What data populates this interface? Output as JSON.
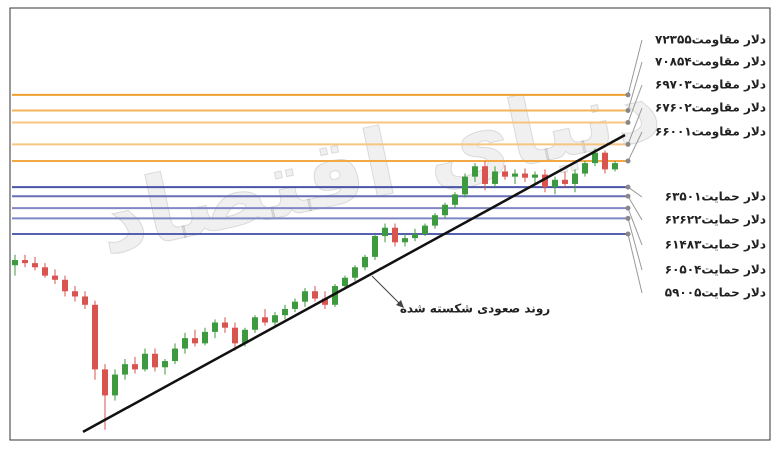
{
  "chart_data": {
    "type": "candlestick",
    "watermark": "دنیای اقتصاد",
    "ylim": [
      3970,
      8050
    ],
    "up_color": "#3e9a3e",
    "down_color": "#d9534f",
    "open": [
      5600,
      5650,
      5620,
      5580,
      5500,
      5460,
      5350,
      5300,
      5220,
      4600,
      4350,
      4550,
      4650,
      4600,
      4750,
      4620,
      4680,
      4800,
      4900,
      4850,
      4960,
      5050,
      5000,
      4850,
      4980,
      5100,
      5050,
      5120,
      5180,
      5250,
      5350,
      5280,
      5220,
      5400,
      5480,
      5580,
      5680,
      5880,
      5960,
      5820,
      5860,
      5900,
      5980,
      6080,
      6180,
      6280,
      6450,
      6550,
      6380,
      6500,
      6450,
      6480,
      6440,
      6470,
      6350,
      6420,
      6380,
      6480,
      6580,
      6680,
      6520
    ],
    "high": [
      5700,
      5700,
      5680,
      5620,
      5560,
      5500,
      5400,
      5350,
      5260,
      4650,
      4600,
      4700,
      4720,
      4800,
      4800,
      4700,
      4850,
      4950,
      4980,
      5000,
      5080,
      5100,
      5050,
      5000,
      5120,
      5180,
      5150,
      5220,
      5280,
      5380,
      5400,
      5350,
      5420,
      5500,
      5600,
      5700,
      5900,
      6000,
      6000,
      5900,
      5950,
      6000,
      6100,
      6200,
      6300,
      6480,
      6580,
      6600,
      6550,
      6560,
      6520,
      6530,
      6500,
      6520,
      6450,
      6500,
      6520,
      6600,
      6720,
      6700,
      6600
    ],
    "low": [
      5500,
      5580,
      5550,
      5480,
      5420,
      5300,
      5250,
      5180,
      4500,
      4020,
      4300,
      4500,
      4560,
      4580,
      4580,
      4550,
      4650,
      4750,
      4820,
      4830,
      4900,
      4950,
      4780,
      4820,
      4950,
      5020,
      5000,
      5080,
      5150,
      5200,
      5250,
      5180,
      5200,
      5380,
      5450,
      5550,
      5650,
      5820,
      5780,
      5780,
      5830,
      5880,
      5950,
      6050,
      6150,
      6250,
      6400,
      6320,
      6350,
      6420,
      6380,
      6400,
      6380,
      6300,
      6280,
      6350,
      6300,
      6450,
      6550,
      6480,
      6500
    ],
    "close": [
      5650,
      5620,
      5580,
      5500,
      5460,
      5350,
      5300,
      5220,
      4600,
      4350,
      4550,
      4650,
      4600,
      4750,
      4620,
      4680,
      4800,
      4900,
      4850,
      4960,
      5050,
      5000,
      4850,
      4980,
      5100,
      5050,
      5120,
      5180,
      5250,
      5350,
      5280,
      5220,
      5400,
      5480,
      5580,
      5680,
      5880,
      5960,
      5820,
      5860,
      5900,
      5980,
      6080,
      6180,
      6280,
      6450,
      6550,
      6380,
      6500,
      6450,
      6480,
      6440,
      6470,
      6350,
      6420,
      6380,
      6480,
      6580,
      6680,
      6520,
      6580
    ],
    "trendline": {
      "label": "روند صعودی شکسته شده",
      "x": [
        6.8,
        61
      ],
      "values": [
        4000,
        6850
      ],
      "color": "#111111"
    },
    "levels": [
      {
        "value": 7235,
        "label": "۷۲۳۵دلار مقاومت۵",
        "color": "#f0a030"
      },
      {
        "value": 7085,
        "label": "۷۰۸۵دلار مقاومت۴",
        "color": "#f4b45a"
      },
      {
        "value": 6970,
        "label": "۶۹۷۰دلار مقاومت۳",
        "color": "#f7c581"
      },
      {
        "value": 6760,
        "label": "۶۷۶۰دلار مقاومت۲",
        "color": "#f7c581"
      },
      {
        "value": 6600,
        "label": "۶۶۰۰دلار مقاومت۱",
        "color": "#f2a844"
      },
      {
        "value": 6350,
        "label": "۶۳۵۰دلار حمایت۱",
        "color": "#4a55a8"
      },
      {
        "value": 6262,
        "label": "۶۲۶۲دلار حمایت۲",
        "color": "#6670b8"
      },
      {
        "value": 6148,
        "label": "۶۱۴۸دلار حمایت۳",
        "color": "#7f88c4"
      },
      {
        "value": 6050,
        "label": "۶۰۵۰دلار حمایت۴",
        "color": "#7f88c4"
      },
      {
        "value": 5900,
        "label": "۵۹۰۰دلار حمایت۵",
        "color": "#5560ae"
      }
    ]
  }
}
